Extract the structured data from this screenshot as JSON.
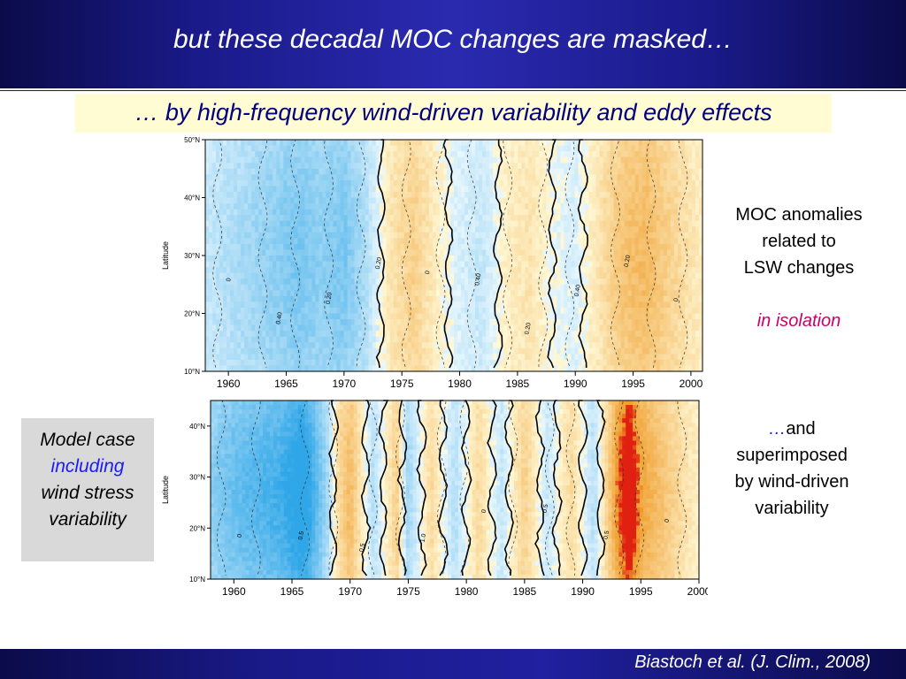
{
  "slide": {
    "title": "but these decadal MOC changes are masked…",
    "subtitle": "… by high-frequency wind-driven variability and eddy effects",
    "citation": "Biastoch et al. (J. Clim., 2008)"
  },
  "side_notes": {
    "top_line1": "MOC anomalies",
    "top_line2": "related to",
    "top_line3": "LSW changes",
    "top_emphasis": "in isolation",
    "bottom_ellipsis": "…",
    "bottom_line1": "and",
    "bottom_line2": "superimposed",
    "bottom_line3": "by wind-driven",
    "bottom_line4": "variability"
  },
  "model_case": {
    "line1": "Model case",
    "line2": "including",
    "line3": "wind stress",
    "line4": "variability"
  },
  "chart_data": [
    {
      "type": "heatmap",
      "ylabel": "Latitude",
      "x_ticks": [
        "1960",
        "1965",
        "1970",
        "1975",
        "1980",
        "1985",
        "1990",
        "1995",
        "2000"
      ],
      "x_values": [
        1960,
        1965,
        1970,
        1975,
        1980,
        1985,
        1990,
        1995,
        2000
      ],
      "xlim": [
        1958,
        2001
      ],
      "y_ticks": [
        "10°N",
        "20°N",
        "30°N",
        "40°N",
        "50°N"
      ],
      "y_values": [
        10,
        20,
        30,
        40,
        50
      ],
      "ylim": [
        10,
        50
      ],
      "contour_labels": [
        "0",
        "0.40",
        "0.20",
        "0.20",
        "0",
        "0.40",
        "0.20",
        "0.40",
        "0.20",
        "0"
      ],
      "anomaly_by_year": [
        [
          1958,
          -0.2
        ],
        [
          1960,
          -0.3
        ],
        [
          1962,
          -0.4
        ],
        [
          1964,
          -0.5
        ],
        [
          1966,
          -0.6
        ],
        [
          1968,
          -0.5
        ],
        [
          1970,
          -0.6
        ],
        [
          1972,
          -0.3
        ],
        [
          1974,
          0.2
        ],
        [
          1976,
          0.4
        ],
        [
          1978,
          0.1
        ],
        [
          1980,
          -0.1
        ],
        [
          1982,
          -0.2
        ],
        [
          1984,
          0.1
        ],
        [
          1986,
          0.2
        ],
        [
          1988,
          0.0
        ],
        [
          1990,
          -0.1
        ],
        [
          1992,
          0.2
        ],
        [
          1994,
          0.5
        ],
        [
          1996,
          0.6
        ],
        [
          1998,
          0.4
        ],
        [
          2000,
          0.2
        ],
        [
          2001,
          0.1
        ]
      ],
      "colors": {
        "negative": "#2fa6e8",
        "positive": "#f0a030",
        "neutral": "#ffffff"
      }
    },
    {
      "type": "heatmap",
      "ylabel": "Latitude",
      "x_ticks": [
        "1960",
        "1965",
        "1970",
        "1975",
        "1980",
        "1985",
        "1990",
        "1995",
        "2000"
      ],
      "x_values": [
        1960,
        1965,
        1970,
        1975,
        1980,
        1985,
        1990,
        1995,
        2000
      ],
      "xlim": [
        1958,
        2000
      ],
      "y_ticks": [
        "10°N",
        "20°N",
        "30°N",
        "40°N"
      ],
      "y_values": [
        10,
        20,
        30,
        40
      ],
      "ylim": [
        10,
        45
      ],
      "contour_labels": [
        "0",
        "0.5",
        "0.5",
        "1.0",
        "0",
        "0.5",
        "0.5",
        "0"
      ],
      "anomaly_by_year": [
        [
          1958,
          -0.5
        ],
        [
          1960,
          -0.7
        ],
        [
          1962,
          -0.8
        ],
        [
          1964,
          -0.9
        ],
        [
          1966,
          -1.2
        ],
        [
          1968,
          -0.4
        ],
        [
          1969,
          0.3
        ],
        [
          1970,
          0.6
        ],
        [
          1972,
          -0.3
        ],
        [
          1974,
          0.4
        ],
        [
          1975,
          -0.4
        ],
        [
          1977,
          0.3
        ],
        [
          1979,
          -0.3
        ],
        [
          1981,
          0.3
        ],
        [
          1983,
          -0.2
        ],
        [
          1985,
          0.4
        ],
        [
          1987,
          -0.2
        ],
        [
          1989,
          0.3
        ],
        [
          1991,
          -0.3
        ],
        [
          1993,
          0.9
        ],
        [
          1994,
          1.3
        ],
        [
          1995,
          0.8
        ],
        [
          1997,
          0.5
        ],
        [
          1999,
          0.2
        ],
        [
          2000,
          0.1
        ]
      ],
      "colors": {
        "negative": "#2fa6e8",
        "positive": "#f0a030",
        "neutral": "#ffffff"
      }
    }
  ]
}
